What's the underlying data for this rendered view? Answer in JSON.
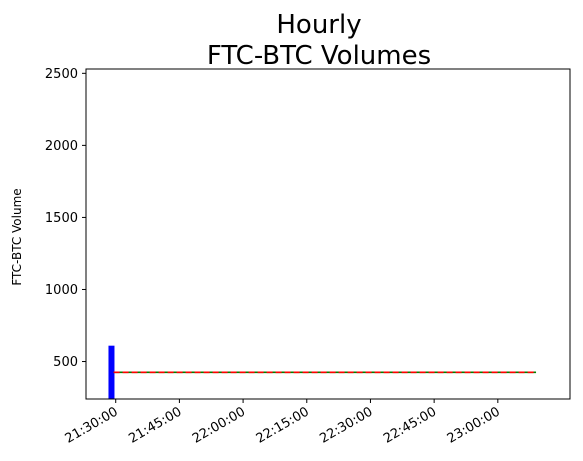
{
  "chart_data": {
    "type": "bar",
    "title": "Hourly\nFTC-BTC Volumes",
    "title_lines": [
      "Hourly",
      "FTC-BTC Volumes"
    ],
    "xlabel": "",
    "ylabel": "FTC-BTC Volume",
    "x_axis_type": "time",
    "xlim": [
      "21:23:00",
      "23:17:00"
    ],
    "ylim": [
      240,
      2530
    ],
    "xticks": [
      "21:30:00",
      "21:45:00",
      "22:00:00",
      "22:15:00",
      "22:30:00",
      "22:45:00",
      "23:00:00"
    ],
    "yticks": [
      500,
      1000,
      1500,
      2000,
      2500
    ],
    "grid": false,
    "bars": [
      {
        "x": "21:29:00",
        "value": 610,
        "color": "#0000ff"
      }
    ],
    "lines": [
      {
        "x_start": "21:29:30",
        "x_end": "23:09:00",
        "value": 425,
        "color": "#008000",
        "style": "solid"
      },
      {
        "x_start": "21:29:30",
        "x_end": "23:09:00",
        "value": 425,
        "color": "#ff0000",
        "style": "dashed"
      }
    ]
  }
}
